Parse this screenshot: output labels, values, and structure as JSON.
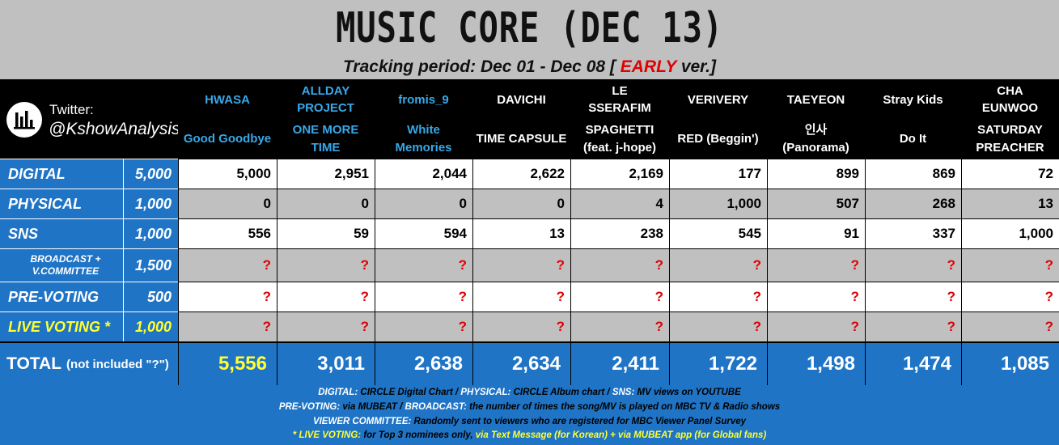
{
  "title": "MUSIC CORE (DEC 13)",
  "subtitle": {
    "prefix": "Tracking period: Dec 01 - Dec 08 [",
    "early": "EARLY",
    "suffix": "ver.]"
  },
  "logo": {
    "twitter": "Twitter:",
    "handle": "@KshowAnalysis"
  },
  "nominees": [
    {
      "artist": "HWASA",
      "song": "Good Goodbye",
      "artist_color": "blue",
      "song_color": "blue",
      "values": [
        "5,000",
        "0",
        "556",
        "?",
        "?",
        "?"
      ],
      "total": "5,556"
    },
    {
      "artist": "ALLDAY PROJECT",
      "song": "ONE MORE TIME",
      "artist_color": "blue",
      "song_color": "blue",
      "values": [
        "2,951",
        "0",
        "59",
        "?",
        "?",
        "?"
      ],
      "total": "3,011"
    },
    {
      "artist": "fromis_9",
      "song": "White Memories",
      "artist_color": "blue",
      "song_color": "blue",
      "values": [
        "2,044",
        "0",
        "594",
        "?",
        "?",
        "?"
      ],
      "total": "2,638"
    },
    {
      "artist": "DAVICHI",
      "song": "TIME CAPSULE",
      "artist_color": "white",
      "song_color": "white",
      "values": [
        "2,622",
        "0",
        "13",
        "?",
        "?",
        "?"
      ],
      "total": "2,634"
    },
    {
      "artist": "LE SSERAFIM",
      "song": "SPAGHETTI (feat. j-hope)",
      "artist_color": "white",
      "song_color": "white",
      "values": [
        "2,169",
        "4",
        "238",
        "?",
        "?",
        "?"
      ],
      "total": "2,411"
    },
    {
      "artist": "VERIVERY",
      "song": "RED (Beggin')",
      "artist_color": "white",
      "song_color": "white",
      "values": [
        "177",
        "1,000",
        "545",
        "?",
        "?",
        "?"
      ],
      "total": "1,722"
    },
    {
      "artist": "TAEYEON",
      "song": "인사 (Panorama)",
      "artist_color": "white",
      "song_color": "white",
      "values": [
        "899",
        "507",
        "91",
        "?",
        "?",
        "?"
      ],
      "total": "1,498"
    },
    {
      "artist": "Stray Kids",
      "song": "Do It",
      "artist_color": "white",
      "song_color": "white",
      "values": [
        "869",
        "268",
        "337",
        "?",
        "?",
        "?"
      ],
      "total": "1,474"
    },
    {
      "artist": "CHA EUNWOO",
      "song": "SATURDAY PREACHER",
      "artist_color": "white",
      "song_color": "white",
      "values": [
        "72",
        "13",
        "1,000",
        "?",
        "?",
        "?"
      ],
      "total": "1,085"
    }
  ],
  "categories": [
    {
      "label": "DIGITAL",
      "max": "5,000"
    },
    {
      "label": "PHYSICAL",
      "max": "1,000"
    },
    {
      "label": "SNS",
      "max": "1,000"
    },
    {
      "label": "BROADCAST + V.COMMITTEE",
      "max": "1,500"
    },
    {
      "label": "PRE-VOTING",
      "max": "500"
    },
    {
      "label": "LIVE VOTING *",
      "max": "1,000"
    }
  ],
  "total_label": {
    "main": "TOTAL",
    "note": "(not included \"?\")"
  },
  "footer": {
    "line1": [
      {
        "t": "DIGITAL:",
        "c": "w"
      },
      {
        "t": " CIRCLE Digital Chart / ",
        "c": "k"
      },
      {
        "t": "PHYSICAL:",
        "c": "w"
      },
      {
        "t": " CIRCLE Album chart / ",
        "c": "k"
      },
      {
        "t": "SNS:",
        "c": "w"
      },
      {
        "t": " MV views on YOUTUBE",
        "c": "k"
      }
    ],
    "line2": [
      {
        "t": "PRE-VOTING:",
        "c": "w"
      },
      {
        "t": " via MUBEAT / ",
        "c": "k"
      },
      {
        "t": "BROADCAST:",
        "c": "w"
      },
      {
        "t": " the number of times the song/MV is played on MBC TV & Radio shows",
        "c": "k"
      }
    ],
    "line3": [
      {
        "t": "VIEWER COMMITTEE:",
        "c": "w"
      },
      {
        "t": " Randomly sent to viewers who are registered for MBC Viewer Panel Survey",
        "c": "k"
      }
    ],
    "line4": [
      {
        "t": "* LIVE VOTING:",
        "c": "y"
      },
      {
        "t": " for Top 3 nominees only, ",
        "c": "k"
      },
      {
        "t": "via Text Message (for Korean) + via MUBEAT app (for Global fans)",
        "c": "y"
      }
    ]
  }
}
